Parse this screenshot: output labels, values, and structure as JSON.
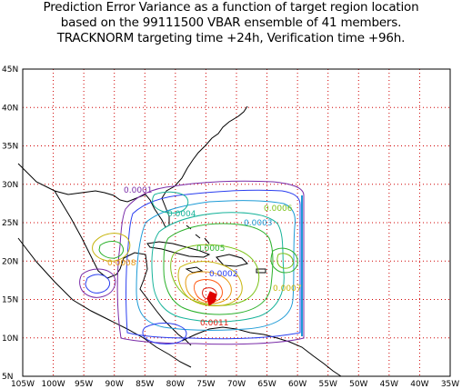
{
  "title": {
    "line1": "Prediction Error Variance as a function of target region location",
    "line2": "based on the 99111500 VBAR ensemble of 41 members.",
    "line3": "TRACKNORM targeting time +24h, Verification time +96h."
  },
  "map": {
    "lon_labels": [
      "105W",
      "100W",
      "95W",
      "90W",
      "85W",
      "80W",
      "75W",
      "70W",
      "65W",
      "60W",
      "55W",
      "50W",
      "45W",
      "40W",
      "35W"
    ],
    "lat_labels": [
      "5N",
      "10N",
      "15N",
      "20N",
      "25N",
      "30N",
      "35N",
      "40N",
      "45N"
    ],
    "contour_labels": [
      {
        "text": "0.0001",
        "color": "#7a2ca8"
      },
      {
        "text": "0.0002",
        "color": "#2b3ff0"
      },
      {
        "text": "0.0003",
        "color": "#1e9bd6"
      },
      {
        "text": "0.0004",
        "color": "#17b39a"
      },
      {
        "text": "0.0005",
        "color": "#2bb12b"
      },
      {
        "text": "0.0006",
        "color": "#7cc218"
      },
      {
        "text": "0.0007",
        "color": "#c6b40a"
      },
      {
        "text": "0.0008",
        "color": "#e59a10"
      },
      {
        "text": "0.0011",
        "color": "#e02010"
      }
    ],
    "max_marker": {
      "label": "max",
      "color": "#e00000"
    }
  }
}
